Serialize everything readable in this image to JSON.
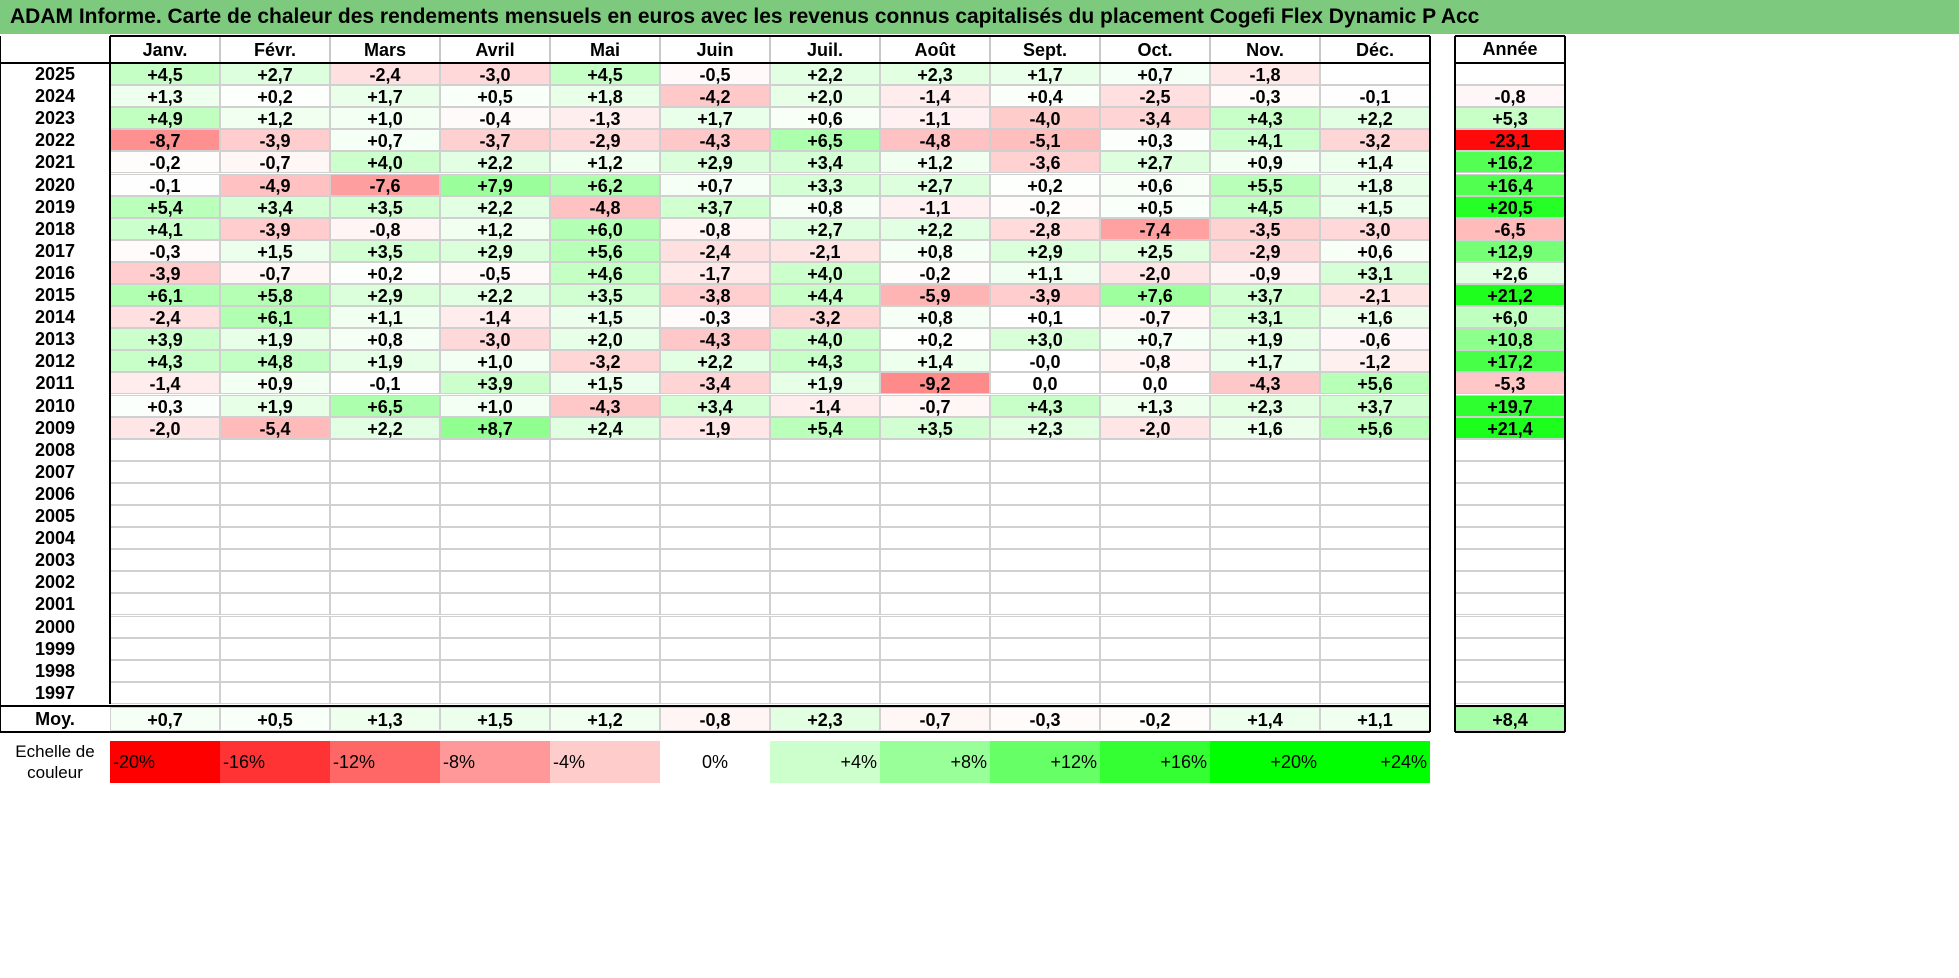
{
  "title": "ADAM Informe. Carte de chaleur des rendements mensuels en euros avec les revenus connus capitalisés du placement Cogefi Flex Dynamic P Acc",
  "labels": {
    "year_header": "Année",
    "avg_label": "Moy.",
    "scale_label_line1": "Echelle de",
    "scale_label_line2": "couleur"
  },
  "chart_data": {
    "type": "heatmap",
    "columns": [
      "Janv.",
      "Févr.",
      "Mars",
      "Avril",
      "Mai",
      "Juin",
      "Juil.",
      "Août",
      "Sept.",
      "Oct.",
      "Nov.",
      "Déc."
    ],
    "rows": [
      {
        "year": "2025",
        "months": [
          "+4,5",
          "+2,7",
          "-2,4",
          "-3,0",
          "+4,5",
          "-0,5",
          "+2,2",
          "+2,3",
          "+1,7",
          "+0,7",
          "-1,8",
          ""
        ],
        "annual": ""
      },
      {
        "year": "2024",
        "months": [
          "+1,3",
          "+0,2",
          "+1,7",
          "+0,5",
          "+1,8",
          "-4,2",
          "+2,0",
          "-1,4",
          "+0,4",
          "-2,5",
          "-0,3",
          "-0,1"
        ],
        "annual": "-0,8"
      },
      {
        "year": "2023",
        "months": [
          "+4,9",
          "+1,2",
          "+1,0",
          "-0,4",
          "-1,3",
          "+1,7",
          "+0,6",
          "-1,1",
          "-4,0",
          "-3,4",
          "+4,3",
          "+2,2"
        ],
        "annual": "+5,3"
      },
      {
        "year": "2022",
        "months": [
          "-8,7",
          "-3,9",
          "+0,7",
          "-3,7",
          "-2,9",
          "-4,3",
          "+6,5",
          "-4,8",
          "-5,1",
          "+0,3",
          "+4,1",
          "-3,2"
        ],
        "annual": "-23,1"
      },
      {
        "year": "2021",
        "months": [
          "-0,2",
          "-0,7",
          "+4,0",
          "+2,2",
          "+1,2",
          "+2,9",
          "+3,4",
          "+1,2",
          "-3,6",
          "+2,7",
          "+0,9",
          "+1,4"
        ],
        "annual": "+16,2"
      },
      {
        "year": "2020",
        "months": [
          "-0,1",
          "-4,9",
          "-7,6",
          "+7,9",
          "+6,2",
          "+0,7",
          "+3,3",
          "+2,7",
          "+0,2",
          "+0,6",
          "+5,5",
          "+1,8"
        ],
        "annual": "+16,4"
      },
      {
        "year": "2019",
        "months": [
          "+5,4",
          "+3,4",
          "+3,5",
          "+2,2",
          "-4,8",
          "+3,7",
          "+0,8",
          "-1,1",
          "-0,2",
          "+0,5",
          "+4,5",
          "+1,5"
        ],
        "annual": "+20,5"
      },
      {
        "year": "2018",
        "months": [
          "+4,1",
          "-3,9",
          "-0,8",
          "+1,2",
          "+6,0",
          "-0,8",
          "+2,7",
          "+2,2",
          "-2,8",
          "-7,4",
          "-3,5",
          "-3,0"
        ],
        "annual": "-6,5"
      },
      {
        "year": "2017",
        "months": [
          "-0,3",
          "+1,5",
          "+3,5",
          "+2,9",
          "+5,6",
          "-2,4",
          "-2,1",
          "+0,8",
          "+2,9",
          "+2,5",
          "-2,9",
          "+0,6"
        ],
        "annual": "+12,9"
      },
      {
        "year": "2016",
        "months": [
          "-3,9",
          "-0,7",
          "+0,2",
          "-0,5",
          "+4,6",
          "-1,7",
          "+4,0",
          "-0,2",
          "+1,1",
          "-2,0",
          "-0,9",
          "+3,1"
        ],
        "annual": "+2,6"
      },
      {
        "year": "2015",
        "months": [
          "+6,1",
          "+5,8",
          "+2,9",
          "+2,2",
          "+3,5",
          "-3,8",
          "+4,4",
          "-5,9",
          "-3,9",
          "+7,6",
          "+3,7",
          "-2,1"
        ],
        "annual": "+21,2"
      },
      {
        "year": "2014",
        "months": [
          "-2,4",
          "+6,1",
          "+1,1",
          "-1,4",
          "+1,5",
          "-0,3",
          "-3,2",
          "+0,8",
          "+0,1",
          "-0,7",
          "+3,1",
          "+1,6"
        ],
        "annual": "+6,0"
      },
      {
        "year": "2013",
        "months": [
          "+3,9",
          "+1,9",
          "+0,8",
          "-3,0",
          "+2,0",
          "-4,3",
          "+4,0",
          "+0,2",
          "+3,0",
          "+0,7",
          "+1,9",
          "-0,6"
        ],
        "annual": "+10,8"
      },
      {
        "year": "2012",
        "months": [
          "+4,3",
          "+4,8",
          "+1,9",
          "+1,0",
          "-3,2",
          "+2,2",
          "+4,3",
          "+1,4",
          "-0,0",
          "-0,8",
          "+1,7",
          "-1,2"
        ],
        "annual": "+17,2"
      },
      {
        "year": "2011",
        "months": [
          "-1,4",
          "+0,9",
          "-0,1",
          "+3,9",
          "+1,5",
          "-3,4",
          "+1,9",
          "-9,2",
          "0,0",
          "0,0",
          "-4,3",
          "+5,6"
        ],
        "annual": "-5,3"
      },
      {
        "year": "2010",
        "months": [
          "+0,3",
          "+1,9",
          "+6,5",
          "+1,0",
          "-4,3",
          "+3,4",
          "-1,4",
          "-0,7",
          "+4,3",
          "+1,3",
          "+2,3",
          "+3,7"
        ],
        "annual": "+19,7"
      },
      {
        "year": "2009",
        "months": [
          "-2,0",
          "-5,4",
          "+2,2",
          "+8,7",
          "+2,4",
          "-1,9",
          "+5,4",
          "+3,5",
          "+2,3",
          "-2,0",
          "+1,6",
          "+5,6"
        ],
        "annual": "+21,4"
      },
      {
        "year": "2008",
        "months": [
          "",
          "",
          "",
          "",
          "",
          "",
          "",
          "",
          "",
          "",
          "",
          ""
        ],
        "annual": ""
      },
      {
        "year": "2007",
        "months": [
          "",
          "",
          "",
          "",
          "",
          "",
          "",
          "",
          "",
          "",
          "",
          ""
        ],
        "annual": ""
      },
      {
        "year": "2006",
        "months": [
          "",
          "",
          "",
          "",
          "",
          "",
          "",
          "",
          "",
          "",
          "",
          ""
        ],
        "annual": ""
      },
      {
        "year": "2005",
        "months": [
          "",
          "",
          "",
          "",
          "",
          "",
          "",
          "",
          "",
          "",
          "",
          ""
        ],
        "annual": ""
      },
      {
        "year": "2004",
        "months": [
          "",
          "",
          "",
          "",
          "",
          "",
          "",
          "",
          "",
          "",
          "",
          ""
        ],
        "annual": ""
      },
      {
        "year": "2003",
        "months": [
          "",
          "",
          "",
          "",
          "",
          "",
          "",
          "",
          "",
          "",
          "",
          ""
        ],
        "annual": ""
      },
      {
        "year": "2002",
        "months": [
          "",
          "",
          "",
          "",
          "",
          "",
          "",
          "",
          "",
          "",
          "",
          ""
        ],
        "annual": ""
      },
      {
        "year": "2001",
        "months": [
          "",
          "",
          "",
          "",
          "",
          "",
          "",
          "",
          "",
          "",
          "",
          ""
        ],
        "annual": ""
      },
      {
        "year": "2000",
        "months": [
          "",
          "",
          "",
          "",
          "",
          "",
          "",
          "",
          "",
          "",
          "",
          ""
        ],
        "annual": ""
      },
      {
        "year": "1999",
        "months": [
          "",
          "",
          "",
          "",
          "",
          "",
          "",
          "",
          "",
          "",
          "",
          ""
        ],
        "annual": ""
      },
      {
        "year": "1998",
        "months": [
          "",
          "",
          "",
          "",
          "",
          "",
          "",
          "",
          "",
          "",
          "",
          ""
        ],
        "annual": ""
      },
      {
        "year": "1997",
        "months": [
          "",
          "",
          "",
          "",
          "",
          "",
          "",
          "",
          "",
          "",
          "",
          ""
        ],
        "annual": ""
      }
    ],
    "averages": [
      "+0,7",
      "+0,5",
      "+1,3",
      "+1,5",
      "+1,2",
      "-0,8",
      "+2,3",
      "-0,7",
      "-0,3",
      "-0,2",
      "+1,4",
      "+1,1"
    ],
    "average_annual": "+8,4",
    "color_scale": {
      "labels": [
        "-20%",
        "-16%",
        "-12%",
        "-8%",
        "-4%",
        "0%",
        "+4%",
        "+8%",
        "+12%",
        "+16%",
        "+20%",
        "+24%"
      ],
      "colors": [
        "#ff0000",
        "#ff3333",
        "#ff6666",
        "#ff9999",
        "#ffcccc",
        "#ffffff",
        "#ccffcc",
        "#99ff99",
        "#66ff66",
        "#33ff33",
        "#00ff00",
        "#00ff00"
      ]
    }
  }
}
